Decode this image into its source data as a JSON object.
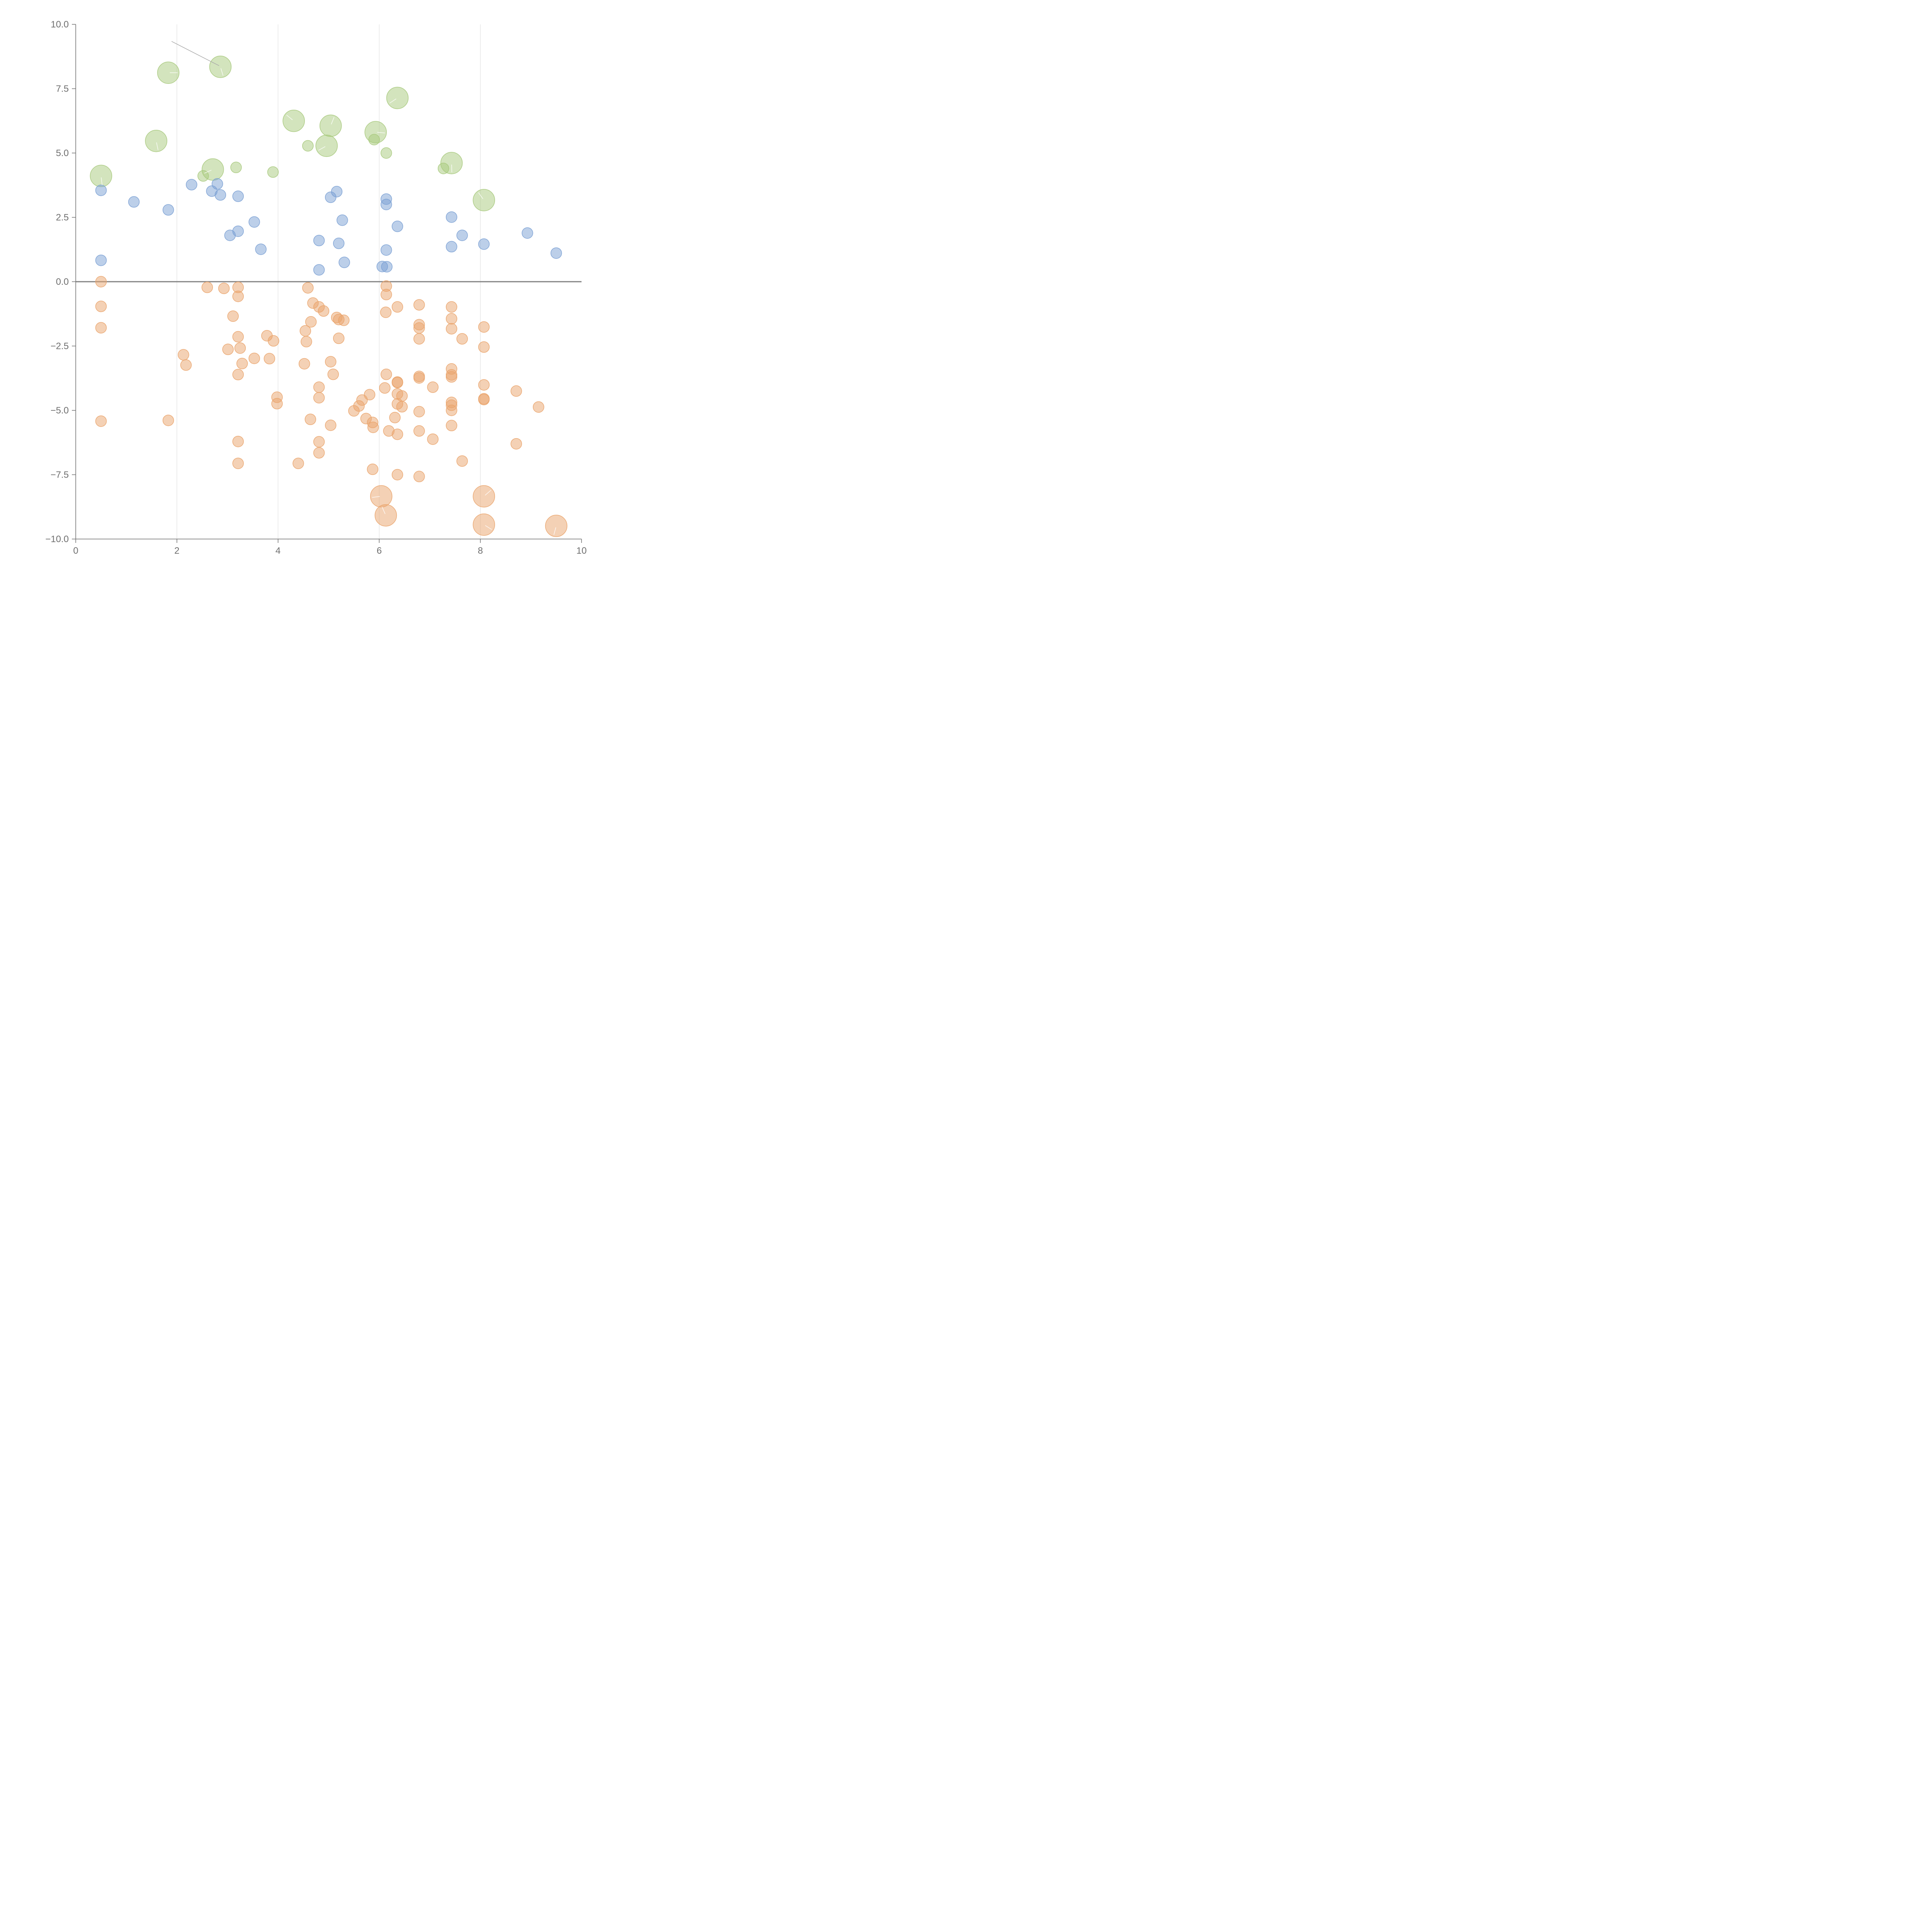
{
  "chart_data": {
    "type": "scatter",
    "title": "",
    "xlabel": "",
    "ylabel": "",
    "xlim": [
      0,
      10
    ],
    "ylim": [
      -10,
      10
    ],
    "grid": "vertical",
    "x_ticks": [
      0,
      2,
      4,
      6,
      8,
      10
    ],
    "x_tick_labels": [
      "0",
      "2",
      "4",
      "6",
      "8",
      "10"
    ],
    "y_ticks": [
      10,
      7.5,
      5,
      2.5,
      0,
      -2.5,
      -5,
      -7.5,
      -10
    ],
    "y_tick_labels": [
      "10.0",
      "7.5",
      "5.0",
      "2.5",
      "0.0",
      "−2.5",
      "−5.0",
      "−7.5",
      "−10.0"
    ],
    "reference_line_y": 0,
    "series": [
      {
        "name": "green",
        "color": "#a7c97c",
        "points": [
          [
            1.83,
            8.12,
            2
          ],
          [
            2.86,
            8.35,
            2
          ],
          [
            6.36,
            7.14,
            2
          ],
          [
            4.31,
            6.25,
            2
          ],
          [
            5.04,
            6.06,
            2
          ],
          [
            5.93,
            5.81,
            2
          ],
          [
            1.59,
            5.47,
            2
          ],
          [
            4.96,
            5.28,
            2
          ],
          [
            5.9,
            5.52,
            1
          ],
          [
            4.59,
            5.28,
            1
          ],
          [
            6.14,
            5.0,
            1
          ],
          [
            0.5,
            4.11,
            2
          ],
          [
            2.71,
            4.36,
            2
          ],
          [
            3.17,
            4.44,
            1
          ],
          [
            3.9,
            4.26,
            1
          ],
          [
            2.52,
            4.11,
            1
          ],
          [
            7.43,
            4.61,
            2
          ],
          [
            7.27,
            4.4,
            1
          ],
          [
            8.07,
            3.17,
            2
          ]
        ]
      },
      {
        "name": "blue",
        "color": "#7aa0d4",
        "points": [
          [
            0.5,
            3.55,
            1
          ],
          [
            1.15,
            3.1,
            1
          ],
          [
            2.29,
            3.77,
            1
          ],
          [
            2.8,
            3.8,
            1
          ],
          [
            2.69,
            3.52,
            1
          ],
          [
            2.86,
            3.37,
            1
          ],
          [
            3.21,
            3.32,
            1
          ],
          [
            1.83,
            2.79,
            1
          ],
          [
            3.53,
            2.32,
            1
          ],
          [
            3.21,
            1.96,
            1
          ],
          [
            3.05,
            1.8,
            1
          ],
          [
            3.66,
            1.26,
            1
          ],
          [
            0.5,
            0.83,
            1
          ],
          [
            5.16,
            3.5,
            1
          ],
          [
            5.04,
            3.28,
            1
          ],
          [
            5.27,
            2.39,
            1
          ],
          [
            4.81,
            1.6,
            1
          ],
          [
            5.2,
            1.49,
            1
          ],
          [
            5.31,
            0.75,
            1
          ],
          [
            4.81,
            0.46,
            1
          ],
          [
            6.14,
            3.21,
            1
          ],
          [
            6.14,
            3.0,
            1
          ],
          [
            6.36,
            2.15,
            1
          ],
          [
            6.14,
            1.23,
            1
          ],
          [
            6.06,
            0.59,
            1
          ],
          [
            6.15,
            0.58,
            1
          ],
          [
            7.43,
            2.51,
            1
          ],
          [
            7.64,
            1.8,
            1
          ],
          [
            7.43,
            1.36,
            1
          ],
          [
            8.07,
            1.46,
            1
          ],
          [
            8.93,
            1.89,
            1
          ],
          [
            9.5,
            1.11,
            1
          ]
        ]
      },
      {
        "name": "orange",
        "color": "#eaa46c",
        "points": [
          [
            0.5,
            0.0,
            1
          ],
          [
            0.5,
            -0.96,
            1
          ],
          [
            0.5,
            -1.79,
            1
          ],
          [
            0.5,
            -5.42,
            1
          ],
          [
            2.6,
            -0.22,
            1
          ],
          [
            2.93,
            -0.26,
            1
          ],
          [
            3.21,
            -0.22,
            1
          ],
          [
            3.21,
            -0.57,
            1
          ],
          [
            3.11,
            -1.34,
            1
          ],
          [
            3.21,
            -2.14,
            1
          ],
          [
            3.25,
            -2.58,
            1
          ],
          [
            3.01,
            -2.63,
            1
          ],
          [
            2.13,
            -2.84,
            1
          ],
          [
            2.18,
            -3.24,
            1
          ],
          [
            3.29,
            -3.18,
            1
          ],
          [
            3.53,
            -2.98,
            1
          ],
          [
            3.21,
            -3.61,
            1
          ],
          [
            3.78,
            -2.1,
            1
          ],
          [
            3.91,
            -2.3,
            1
          ],
          [
            3.83,
            -2.99,
            1
          ],
          [
            1.83,
            -5.39,
            1
          ],
          [
            3.21,
            -6.21,
            1
          ],
          [
            3.21,
            -7.06,
            1
          ],
          [
            4.59,
            -0.24,
            1
          ],
          [
            4.69,
            -0.83,
            1
          ],
          [
            4.81,
            -0.98,
            1
          ],
          [
            4.9,
            -1.14,
            1
          ],
          [
            4.65,
            -1.56,
            1
          ],
          [
            4.54,
            -1.91,
            1
          ],
          [
            4.56,
            -2.33,
            1
          ],
          [
            5.16,
            -1.39,
            1
          ],
          [
            5.2,
            -1.47,
            1
          ],
          [
            5.3,
            -1.5,
            1
          ],
          [
            5.2,
            -2.2,
            1
          ],
          [
            4.52,
            -3.19,
            1
          ],
          [
            5.04,
            -3.11,
            1
          ],
          [
            5.09,
            -3.6,
            1
          ],
          [
            4.81,
            -4.1,
            1
          ],
          [
            4.81,
            -4.51,
            1
          ],
          [
            3.98,
            -4.49,
            1
          ],
          [
            3.98,
            -4.74,
            1
          ],
          [
            4.64,
            -5.35,
            1
          ],
          [
            5.04,
            -5.58,
            1
          ],
          [
            4.81,
            -6.22,
            1
          ],
          [
            4.81,
            -6.65,
            1
          ],
          [
            4.4,
            -7.06,
            1
          ],
          [
            6.14,
            -0.17,
            1
          ],
          [
            6.14,
            -0.5,
            1
          ],
          [
            6.36,
            -0.98,
            1
          ],
          [
            6.13,
            -1.19,
            1
          ],
          [
            6.14,
            -3.6,
            1
          ],
          [
            6.11,
            -4.13,
            1
          ],
          [
            6.36,
            -3.9,
            1
          ],
          [
            6.36,
            -3.92,
            1
          ],
          [
            6.36,
            -4.36,
            1
          ],
          [
            6.45,
            -4.44,
            1
          ],
          [
            6.36,
            -4.75,
            1
          ],
          [
            6.45,
            -4.86,
            1
          ],
          [
            5.81,
            -4.39,
            1
          ],
          [
            5.66,
            -4.6,
            1
          ],
          [
            5.6,
            -4.83,
            1
          ],
          [
            5.5,
            -5.02,
            1
          ],
          [
            5.74,
            -5.32,
            1
          ],
          [
            5.87,
            -5.47,
            1
          ],
          [
            5.88,
            -5.66,
            1
          ],
          [
            6.31,
            -5.28,
            1
          ],
          [
            6.19,
            -5.8,
            1
          ],
          [
            6.36,
            -5.93,
            1
          ],
          [
            5.87,
            -7.29,
            1
          ],
          [
            6.36,
            -7.5,
            1
          ],
          [
            6.79,
            -0.9,
            1
          ],
          [
            6.79,
            -1.67,
            1
          ],
          [
            6.79,
            -1.8,
            1
          ],
          [
            6.79,
            -2.22,
            1
          ],
          [
            6.79,
            -3.68,
            1
          ],
          [
            6.79,
            -3.74,
            1
          ],
          [
            7.06,
            -4.1,
            1
          ],
          [
            6.79,
            -5.05,
            1
          ],
          [
            6.79,
            -5.8,
            1
          ],
          [
            7.06,
            -6.12,
            1
          ],
          [
            6.79,
            -7.57,
            1
          ],
          [
            7.43,
            -0.98,
            1
          ],
          [
            7.43,
            -1.44,
            1
          ],
          [
            7.43,
            -1.83,
            1
          ],
          [
            7.64,
            -2.22,
            1
          ],
          [
            7.43,
            -3.39,
            1
          ],
          [
            7.43,
            -3.62,
            1
          ],
          [
            7.43,
            -3.7,
            1
          ],
          [
            7.43,
            -4.69,
            1
          ],
          [
            7.43,
            -4.8,
            1
          ],
          [
            7.43,
            -5.0,
            1
          ],
          [
            7.43,
            -5.59,
            1
          ],
          [
            7.64,
            -6.97,
            1
          ],
          [
            8.07,
            -1.76,
            1
          ],
          [
            8.07,
            -2.54,
            1
          ],
          [
            8.07,
            -4.01,
            1
          ],
          [
            8.07,
            -4.55,
            1
          ],
          [
            8.07,
            -4.58,
            1
          ],
          [
            8.71,
            -4.25,
            1
          ],
          [
            9.15,
            -4.87,
            1
          ],
          [
            8.71,
            -6.3,
            1
          ],
          [
            6.04,
            -8.34,
            2
          ],
          [
            6.13,
            -9.08,
            2
          ],
          [
            8.07,
            -8.34,
            2
          ],
          [
            8.07,
            -9.44,
            2
          ],
          [
            9.5,
            -9.49,
            2
          ]
        ]
      }
    ]
  }
}
